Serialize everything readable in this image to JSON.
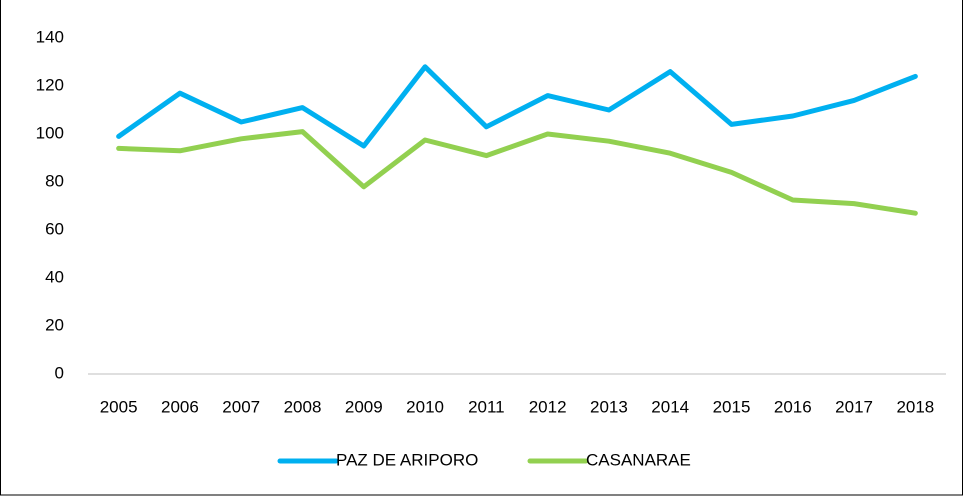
{
  "chart_data": {
    "type": "line",
    "categories": [
      "2005",
      "2006",
      "2007",
      "2008",
      "2009",
      "2010",
      "2011",
      "2012",
      "2013",
      "2014",
      "2015",
      "2016",
      "2017",
      "2018"
    ],
    "series": [
      {
        "name": "PAZ DE ARIPORO",
        "color": "#00b0f0",
        "values": [
          99,
          117,
          105,
          111,
          95,
          128,
          103,
          116,
          110,
          126,
          104,
          107.5,
          114,
          124
        ]
      },
      {
        "name": "CASANARAE",
        "color": "#92d050",
        "values": [
          94,
          93,
          98,
          101,
          78,
          97.5,
          91,
          100,
          97,
          92,
          84,
          72.5,
          71,
          67
        ]
      }
    ],
    "ylim": [
      0,
      140
    ],
    "yticks": [
      0,
      20,
      40,
      60,
      80,
      100,
      120,
      140
    ],
    "grid": false,
    "legend": "bottom"
  }
}
